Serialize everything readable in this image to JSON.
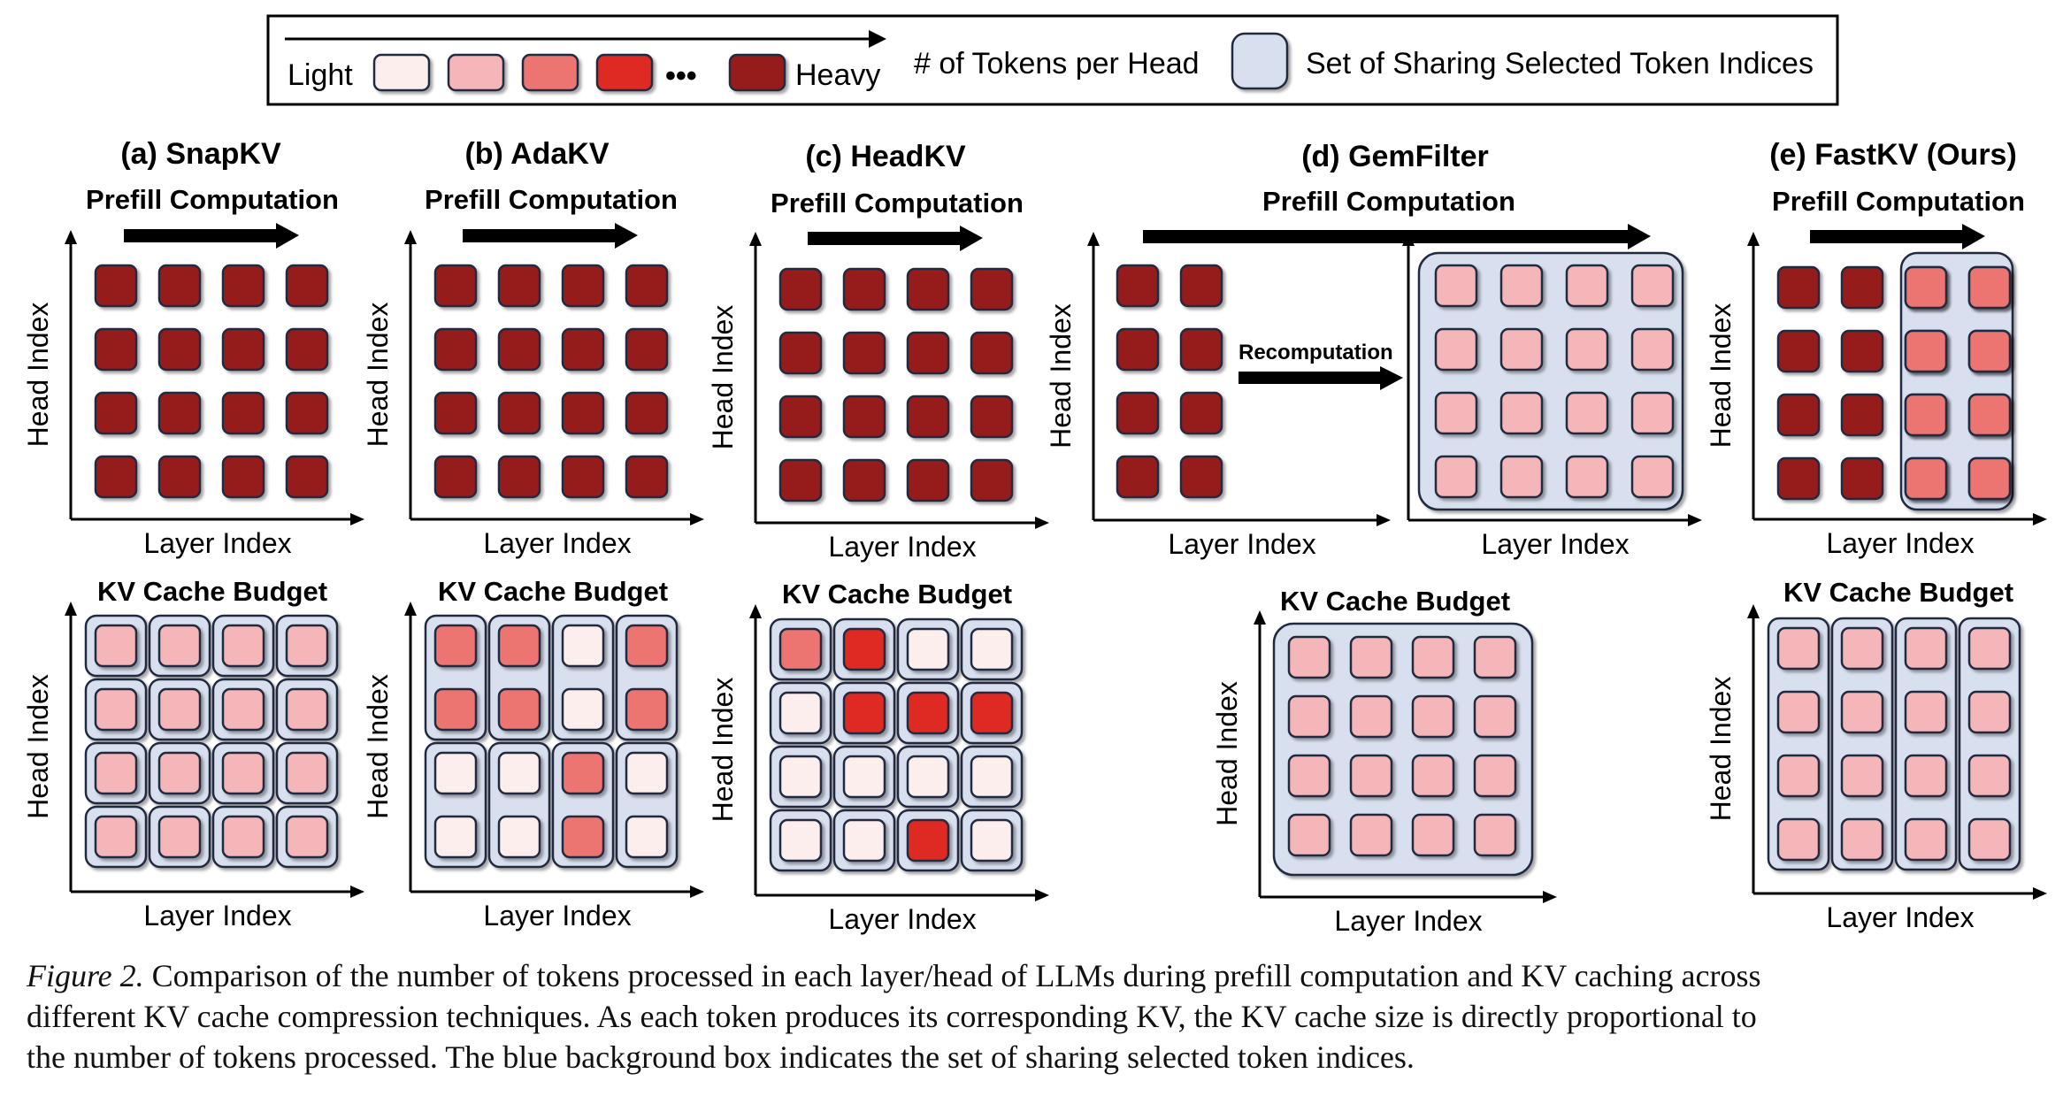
{
  "legend": {
    "light_label": "Light",
    "heavy_label": "Heavy",
    "ellipsis": "•••",
    "tokens_label": "# of Tokens per Head",
    "sharing_label": "Set of Sharing Selected Token Indices"
  },
  "colors": {
    "L0": "#fdeeee",
    "L1": "#f4b6b8",
    "L2": "#ec7472",
    "L3": "#de2a22",
    "L4": "#961a1c",
    "sharing_box": "#d8e0ef",
    "cell_border": "#222a40",
    "axis": "#000000"
  },
  "panels": [
    {
      "title": "(a) SnapKV",
      "prefill_label": "Prefill Computation",
      "budget_label": "KV Cache Budget",
      "axis_x": "Layer Index",
      "axis_y": "Head Index",
      "prefill_grid": [
        [
          4,
          4,
          4,
          4
        ],
        [
          4,
          4,
          4,
          4
        ],
        [
          4,
          4,
          4,
          4
        ],
        [
          4,
          4,
          4,
          4
        ]
      ],
      "budget_grid": [
        [
          1,
          1,
          1,
          1
        ],
        [
          1,
          1,
          1,
          1
        ],
        [
          1,
          1,
          1,
          1
        ],
        [
          1,
          1,
          1,
          1
        ]
      ],
      "budget_sharing": "per-cell"
    },
    {
      "title": "(b) AdaKV",
      "prefill_label": "Prefill Computation",
      "budget_label": "KV Cache Budget",
      "axis_x": "Layer Index",
      "axis_y": "Head Index",
      "prefill_grid": [
        [
          4,
          4,
          4,
          4
        ],
        [
          4,
          4,
          4,
          4
        ],
        [
          4,
          4,
          4,
          4
        ],
        [
          4,
          4,
          4,
          4
        ]
      ],
      "budget_grid": [
        [
          2,
          2,
          0,
          2
        ],
        [
          2,
          2,
          0,
          2
        ],
        [
          0,
          0,
          2,
          0
        ],
        [
          0,
          0,
          2,
          0
        ]
      ],
      "budget_sharing": "column-pairs"
    },
    {
      "title": "(c) HeadKV",
      "prefill_label": "Prefill Computation",
      "budget_label": "KV Cache Budget",
      "axis_x": "Layer Index",
      "axis_y": "Head Index",
      "prefill_grid": [
        [
          4,
          4,
          4,
          4
        ],
        [
          4,
          4,
          4,
          4
        ],
        [
          4,
          4,
          4,
          4
        ],
        [
          4,
          4,
          4,
          4
        ]
      ],
      "budget_grid": [
        [
          2,
          3,
          0,
          0
        ],
        [
          0,
          3,
          3,
          3
        ],
        [
          0,
          0,
          0,
          0
        ],
        [
          0,
          0,
          3,
          0
        ]
      ],
      "budget_sharing": "per-cell"
    },
    {
      "title": "(d) GemFilter",
      "prefill_label": "Prefill Computation",
      "budget_label": "KV Cache Budget",
      "recompute_label": "Recomputation",
      "axis_x": "Layer Index",
      "axis_y": "Head Index",
      "prefill_grid_left": [
        [
          4,
          4
        ],
        [
          4,
          4
        ],
        [
          4,
          4
        ],
        [
          4,
          4
        ]
      ],
      "prefill_grid_right": [
        [
          1,
          1,
          1,
          1
        ],
        [
          1,
          1,
          1,
          1
        ],
        [
          1,
          1,
          1,
          1
        ],
        [
          1,
          1,
          1,
          1
        ]
      ],
      "budget_grid": [
        [
          1,
          1,
          1,
          1
        ],
        [
          1,
          1,
          1,
          1
        ],
        [
          1,
          1,
          1,
          1
        ],
        [
          1,
          1,
          1,
          1
        ]
      ],
      "budget_sharing": "whole"
    },
    {
      "title": "(e) FastKV (Ours)",
      "prefill_label": "Prefill Computation",
      "budget_label": "KV Cache Budget",
      "axis_x": "Layer Index",
      "axis_y": "Head Index",
      "prefill_grid": [
        [
          4,
          4,
          2,
          2
        ],
        [
          4,
          4,
          2,
          2
        ],
        [
          4,
          4,
          2,
          2
        ],
        [
          4,
          4,
          2,
          2
        ]
      ],
      "budget_grid": [
        [
          1,
          1,
          1,
          1
        ],
        [
          1,
          1,
          1,
          1
        ],
        [
          1,
          1,
          1,
          1
        ],
        [
          1,
          1,
          1,
          1
        ]
      ],
      "budget_sharing": "columns"
    }
  ],
  "caption": {
    "figure_label": "Figure 2.",
    "line1": "Comparison of the number of tokens processed in each layer/head of LLMs during prefill computation and KV caching across",
    "line2": "different KV cache compression techniques. As each token produces its corresponding KV, the KV cache size is directly proportional to",
    "line3": "the number of tokens processed. The blue background box indicates the set of sharing selected token indices."
  }
}
